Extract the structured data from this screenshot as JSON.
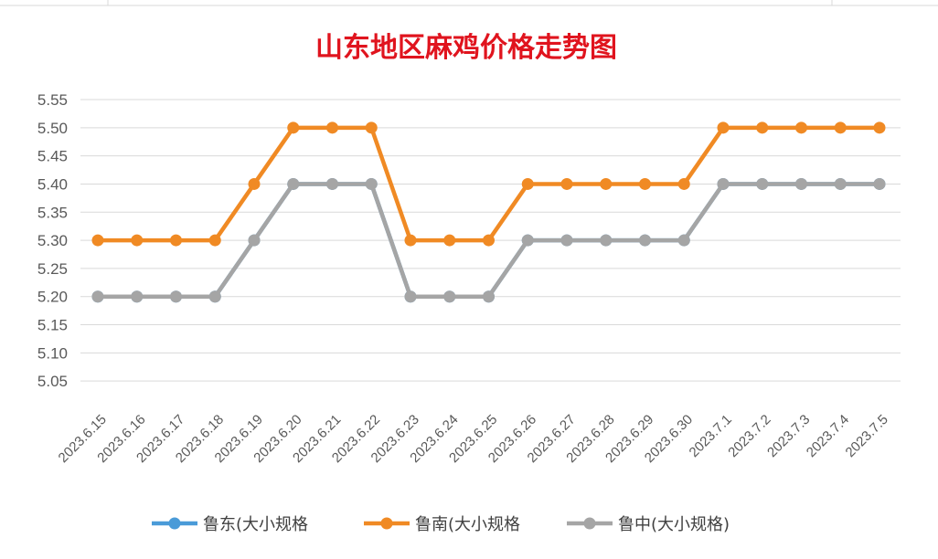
{
  "chart_data": {
    "type": "line",
    "title": "山东地区麻鸡价格走势图",
    "xlabel": "",
    "ylabel": "",
    "ylim": [
      5.0,
      5.55
    ],
    "yticks": [
      "5.05",
      "5.10",
      "5.15",
      "5.20",
      "5.25",
      "5.30",
      "5.35",
      "5.40",
      "5.45",
      "5.50",
      "5.55"
    ],
    "grid": true,
    "legend_position": "bottom",
    "categories": [
      "2023.6.15",
      "2023.6.16",
      "2023.6.17",
      "2023.6.18",
      "2023.6.19",
      "2023.6.20",
      "2023.6.21",
      "2023.6.22",
      "2023.6.23",
      "2023.6.24",
      "2023.6.25",
      "2023.6.26",
      "2023.6.27",
      "2023.6.28",
      "2023.6.29",
      "2023.6.30",
      "2023.7.1",
      "2023.7.2",
      "2023.7.3",
      "2023.7.4",
      "2023.7.5"
    ],
    "series": [
      {
        "name": "鲁东(大小规格",
        "color": "#4a9bd8",
        "values": [
          5.2,
          5.2,
          5.2,
          5.2,
          5.3,
          5.4,
          5.4,
          5.4,
          5.2,
          5.2,
          5.2,
          5.3,
          5.3,
          5.3,
          5.3,
          5.3,
          5.4,
          5.4,
          5.4,
          5.4,
          5.4
        ]
      },
      {
        "name": "鲁南(大小规格",
        "color": "#f08a24",
        "values": [
          5.3,
          5.3,
          5.3,
          5.3,
          5.4,
          5.5,
          5.5,
          5.5,
          5.3,
          5.3,
          5.3,
          5.4,
          5.4,
          5.4,
          5.4,
          5.4,
          5.5,
          5.5,
          5.5,
          5.5,
          5.5
        ]
      },
      {
        "name": "鲁中(大小规格)",
        "color": "#a5a5a5",
        "values": [
          5.2,
          5.2,
          5.2,
          5.2,
          5.3,
          5.4,
          5.4,
          5.4,
          5.2,
          5.2,
          5.2,
          5.3,
          5.3,
          5.3,
          5.3,
          5.3,
          5.4,
          5.4,
          5.4,
          5.4,
          5.4
        ]
      }
    ]
  }
}
